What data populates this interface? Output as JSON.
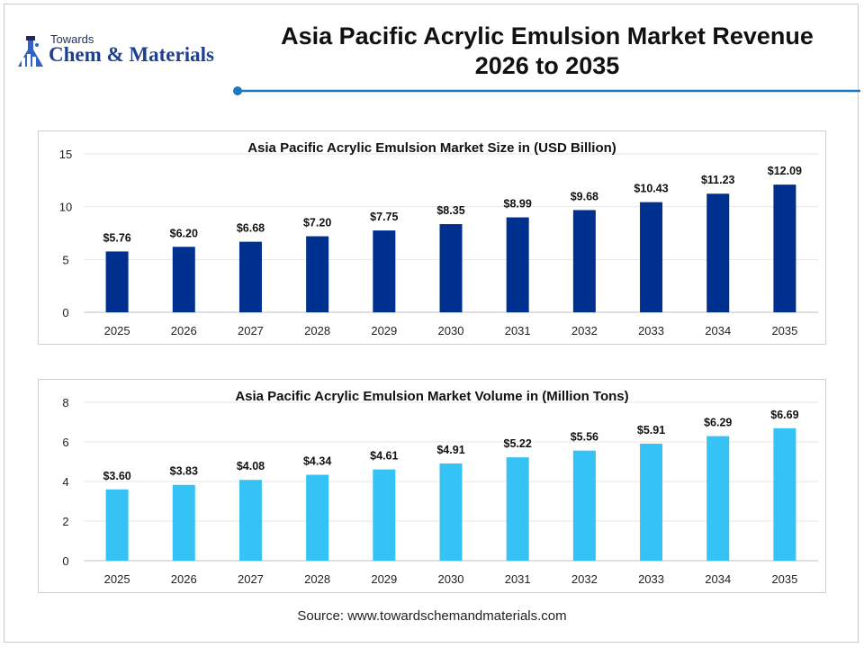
{
  "logo": {
    "towards": "Towards",
    "brand": "Chem & Materials"
  },
  "header": {
    "title_line1": "Asia Pacific Acrylic Emulsion Market Revenue",
    "title_line2": "2026 to 2035"
  },
  "colors": {
    "revenue_bar": "#00308f",
    "volume_bar": "#35c2f5",
    "rule": "#1a79c0"
  },
  "chart_data": [
    {
      "type": "bar",
      "title": "Asia Pacific Acrylic Emulsion Market Size in (USD Billion)",
      "categories": [
        "2025",
        "2026",
        "2027",
        "2028",
        "2029",
        "2030",
        "2031",
        "2032",
        "2033",
        "2034",
        "2035"
      ],
      "values": [
        5.76,
        6.2,
        6.68,
        7.2,
        7.75,
        8.35,
        8.99,
        9.68,
        10.43,
        11.23,
        12.09
      ],
      "data_labels": [
        "$5.76",
        "$6.20",
        "$6.68",
        "$7.20",
        "$7.75",
        "$8.35",
        "$8.99",
        "$9.68",
        "$10.43",
        "$11.23",
        "$12.09"
      ],
      "yticks": [
        0,
        5,
        10,
        15
      ],
      "ylim": [
        0,
        15
      ],
      "grid": true,
      "color": "#00308f"
    },
    {
      "type": "bar",
      "title": "Asia Pacific Acrylic Emulsion Market Volume in (Million Tons)",
      "categories": [
        "2025",
        "2026",
        "2027",
        "2028",
        "2029",
        "2030",
        "2031",
        "2032",
        "2033",
        "2034",
        "2035"
      ],
      "values": [
        3.6,
        3.83,
        4.08,
        4.34,
        4.61,
        4.91,
        5.22,
        5.56,
        5.91,
        6.29,
        6.69
      ],
      "data_labels": [
        "$3.60",
        "$3.83",
        "$4.08",
        "$4.34",
        "$4.61",
        "$4.91",
        "$5.22",
        "$5.56",
        "$5.91",
        "$6.29",
        "$6.69"
      ],
      "yticks": [
        0,
        2,
        4,
        6,
        8
      ],
      "ylim": [
        0,
        8
      ],
      "grid": true,
      "color": "#35c2f5"
    }
  ],
  "footer": {
    "source": "Source: www.towardschemandmaterials.com"
  }
}
